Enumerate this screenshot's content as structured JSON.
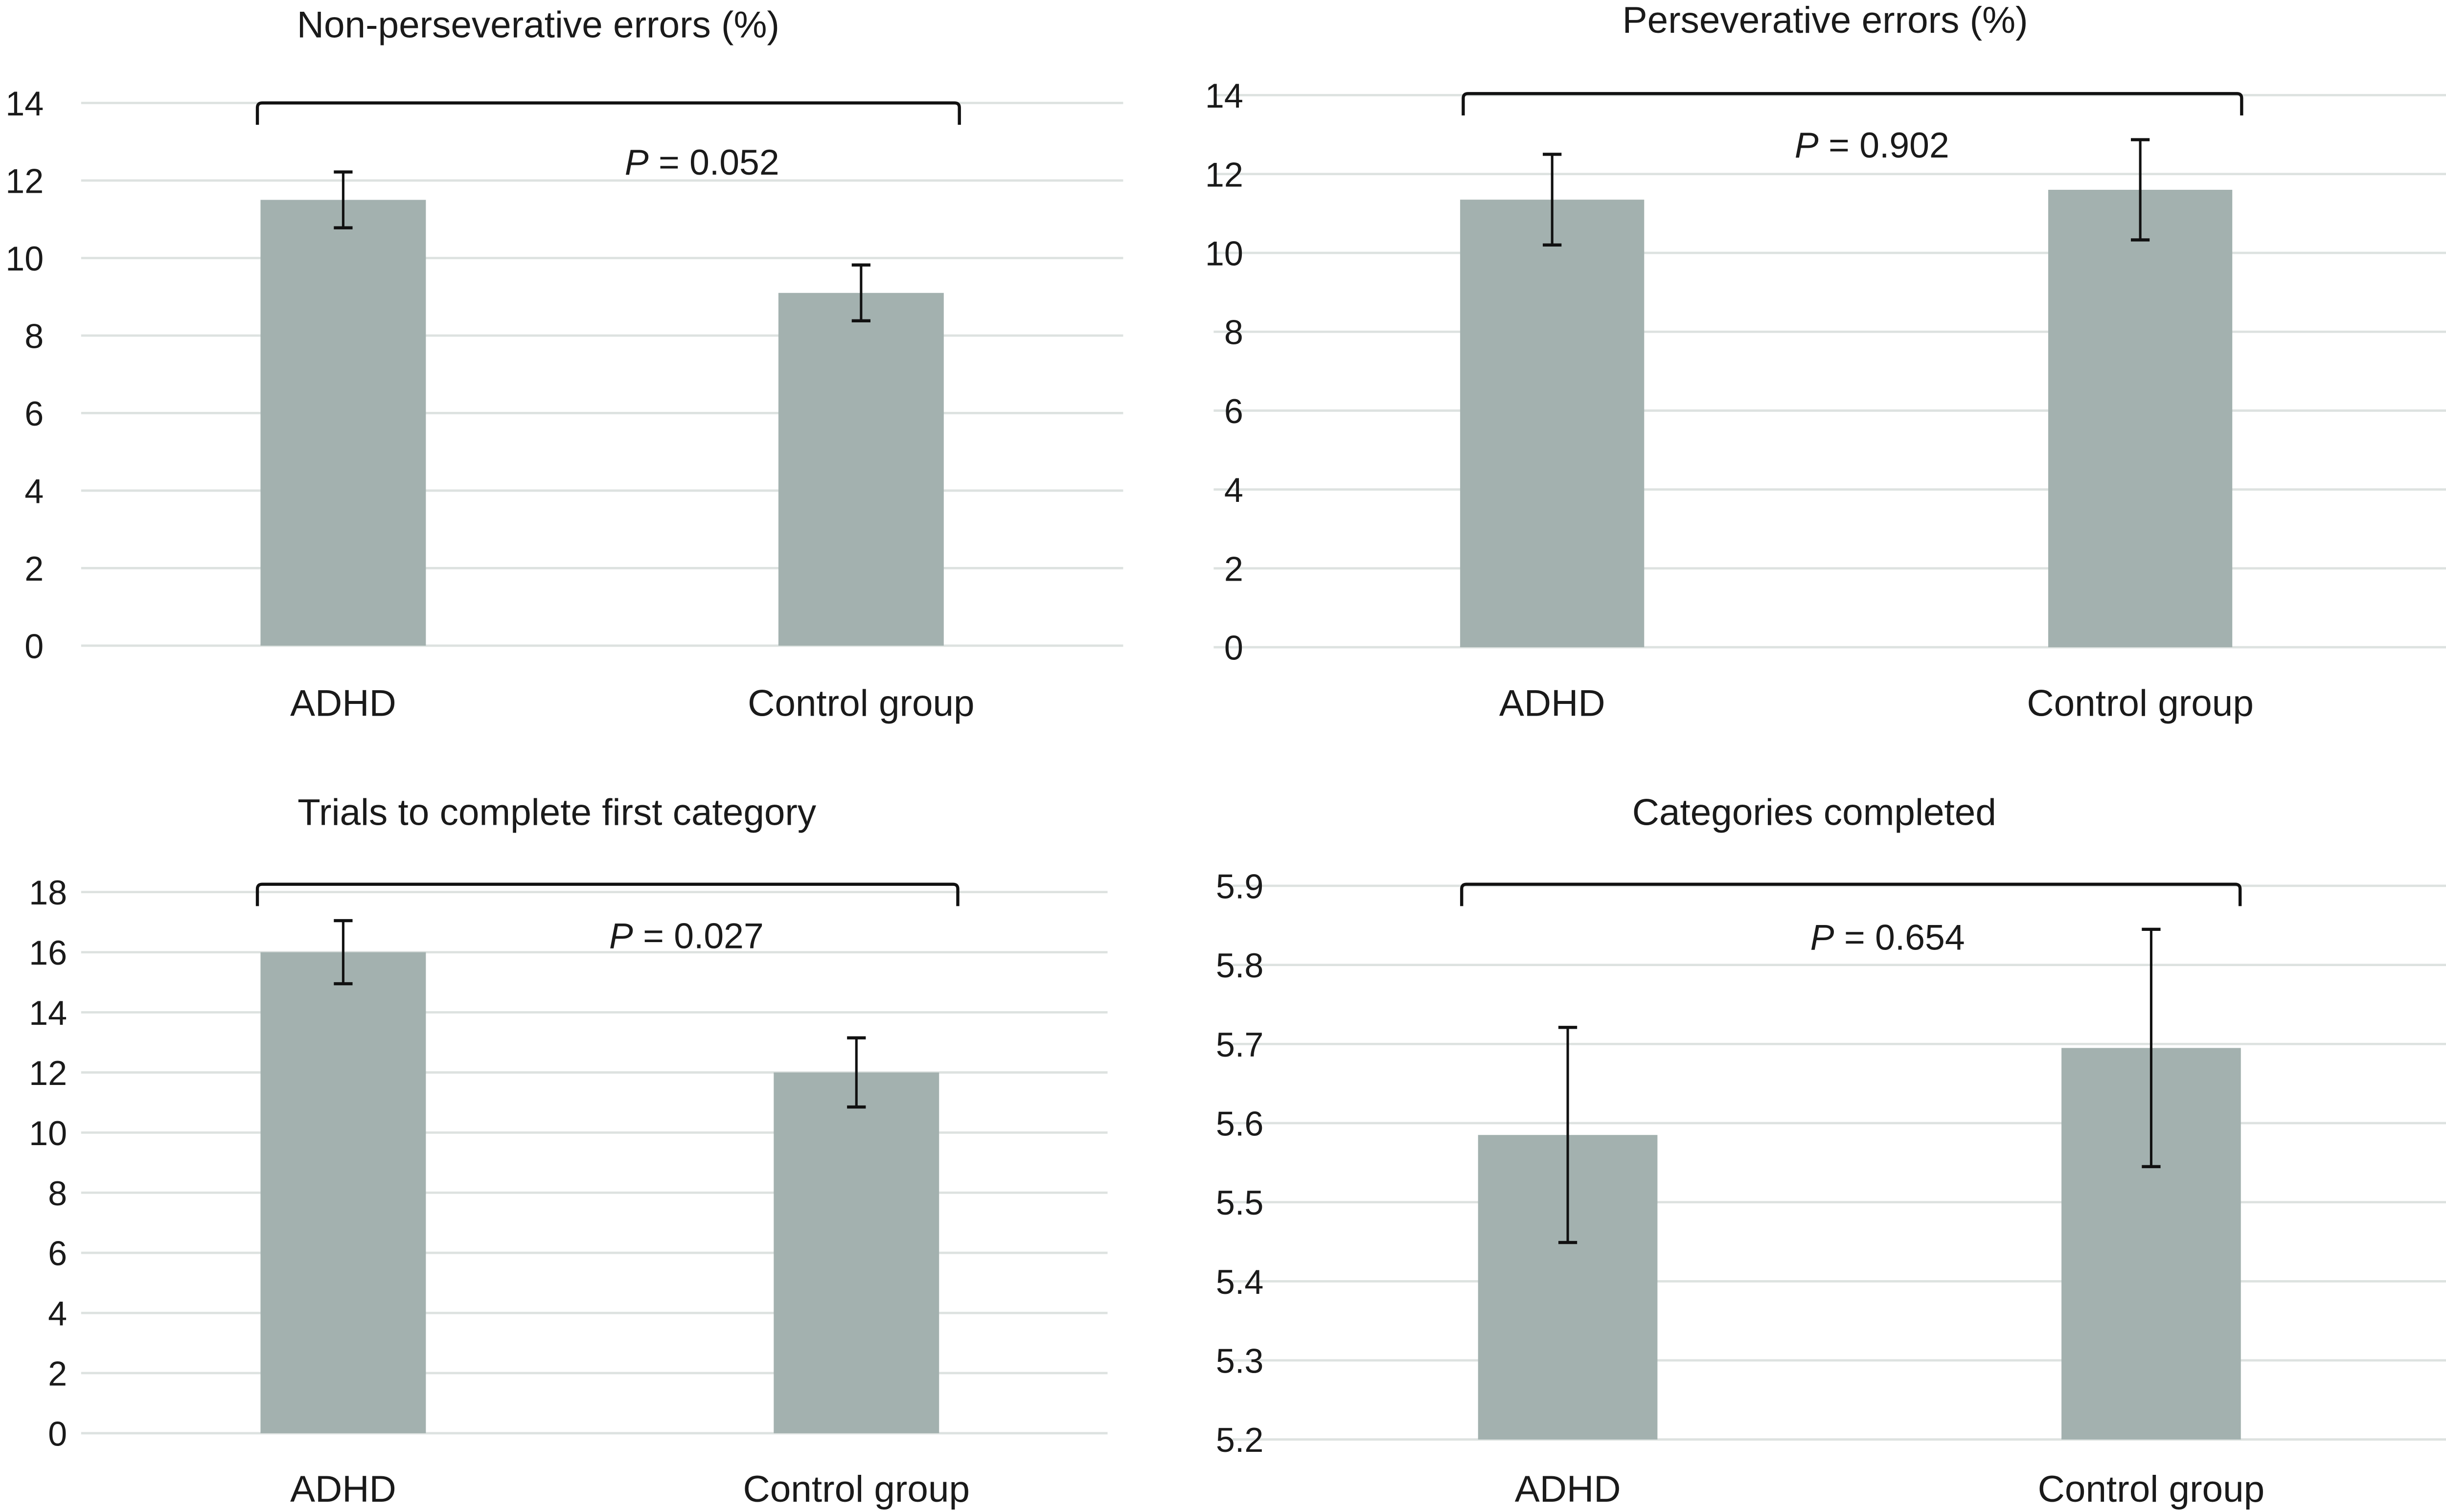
{
  "colors": {
    "bar": "#a3b1af",
    "grid": "#dde2e0",
    "error_bar": "#111111",
    "bracket": "#111111"
  },
  "chart_data": [
    {
      "type": "bar",
      "title": "Non-perseverative errors (%)",
      "categories": [
        "ADHD",
        "Control group"
      ],
      "values": [
        11.5,
        9.1
      ],
      "error": [
        0.72,
        0.72
      ],
      "ylim": [
        0,
        14
      ],
      "yticks": [
        "0",
        "2",
        "4",
        "6",
        "8",
        "10",
        "12",
        "14"
      ],
      "grid": true,
      "annotation": {
        "p_label": "P",
        "p_text": " = 0.052"
      }
    },
    {
      "type": "bar",
      "title": "Perseverative errors (%)",
      "categories": [
        "ADHD",
        "Control group"
      ],
      "values": [
        11.35,
        11.6
      ],
      "error": [
        1.15,
        1.27
      ],
      "ylim": [
        0,
        14
      ],
      "yticks": [
        "0",
        "2",
        "4",
        "6",
        "8",
        "10",
        "12",
        "14"
      ],
      "grid": true,
      "annotation": {
        "p_label": "P",
        "p_text": " = 0.902"
      }
    },
    {
      "type": "bar",
      "title": "Trials to complete first category",
      "categories": [
        "ADHD",
        "Control group"
      ],
      "values": [
        16.0,
        12.0
      ],
      "error": [
        1.05,
        1.15
      ],
      "ylim": [
        0,
        18
      ],
      "yticks": [
        "0",
        "2",
        "4",
        "6",
        "8",
        "10",
        "12",
        "14",
        "16",
        "18"
      ],
      "grid": true,
      "annotation": {
        "p_label": "P",
        "p_text": " = 0.027"
      }
    },
    {
      "type": "bar",
      "title": "Categories completed",
      "categories": [
        "ADHD",
        "Control group"
      ],
      "values": [
        5.585,
        5.695
      ],
      "error": [
        0.136,
        0.15
      ],
      "ylim": [
        5.2,
        5.9
      ],
      "yticks": [
        "5.2",
        "5.3",
        "5.4",
        "5.5",
        "5.6",
        "5.7",
        "5.8",
        "5.9"
      ],
      "grid": true,
      "annotation": {
        "p_label": "P",
        "p_text": " = 0.654"
      }
    }
  ]
}
